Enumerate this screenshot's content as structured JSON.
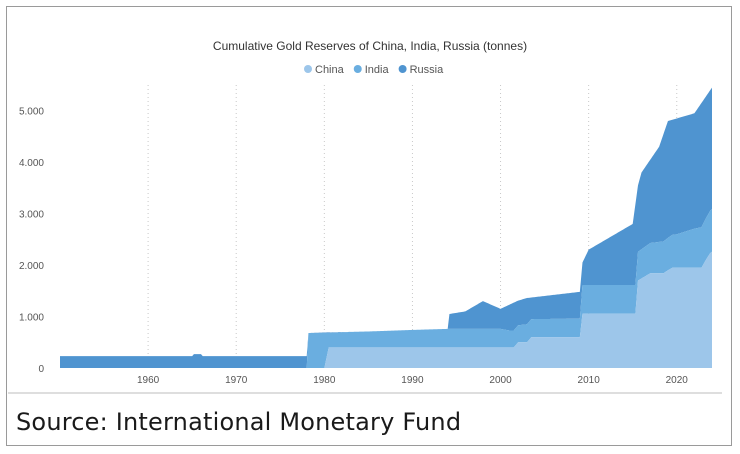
{
  "chart_data": {
    "type": "area",
    "stacked": true,
    "title": "Cumulative Gold Reserves of China, India, Russia (tonnes)",
    "legend_position": "top-center",
    "xlabel": "",
    "ylabel": "",
    "xlim": [
      1950,
      2024
    ],
    "ylim": [
      0,
      5500
    ],
    "x_ticks": [
      "1960",
      "1970",
      "1980",
      "1990",
      "2000",
      "2010",
      "2020"
    ],
    "y_ticks": [
      "0",
      "1.000",
      "2.000",
      "3.000",
      "4.000",
      "5.000"
    ],
    "grid": "vertical-dotted",
    "series": [
      {
        "name": "China",
        "color": "#9dc6ea",
        "points": [
          [
            1980,
            0
          ],
          [
            1980.5,
            400
          ],
          [
            2001.5,
            400
          ],
          [
            2002,
            500
          ],
          [
            2003,
            500
          ],
          [
            2003.5,
            600
          ],
          [
            2009,
            600
          ],
          [
            2009.3,
            1054
          ],
          [
            2015.3,
            1054
          ],
          [
            2015.6,
            1700
          ],
          [
            2017,
            1842
          ],
          [
            2018.5,
            1842
          ],
          [
            2019,
            1900
          ],
          [
            2019.5,
            1948
          ],
          [
            2022.8,
            1948
          ],
          [
            2023.3,
            2100
          ],
          [
            2023.8,
            2235
          ],
          [
            2024,
            2260
          ]
        ]
      },
      {
        "name": "India",
        "color": "#6aaee0",
        "points": [
          [
            1950,
            0
          ],
          [
            1950.5,
            0
          ],
          [
            1965.3,
            0
          ],
          [
            1978,
            0
          ],
          [
            1978.2,
            680
          ],
          [
            1980,
            680
          ],
          [
            1980.5,
            280
          ],
          [
            1990,
            360
          ],
          [
            2000,
            360
          ],
          [
            2001,
            330
          ],
          [
            2002,
            330
          ],
          [
            2003,
            350
          ],
          [
            2009,
            358
          ],
          [
            2009.3,
            558
          ],
          [
            2015.3,
            558
          ],
          [
            2015.6,
            558
          ],
          [
            2020,
            650
          ],
          [
            2022,
            760
          ],
          [
            2024,
            830
          ]
        ]
      },
      {
        "name": "Russia",
        "color": "#4f94d0",
        "points": [
          [
            1950,
            0
          ],
          [
            1993.5,
            0
          ],
          [
            1994,
            300
          ],
          [
            1995,
            300
          ],
          [
            1996,
            350
          ],
          [
            1998,
            550
          ],
          [
            1999,
            380
          ],
          [
            2000,
            380
          ],
          [
            2001,
            420
          ],
          [
            2002,
            470
          ],
          [
            2003,
            390
          ],
          [
            2005,
            386
          ],
          [
            2007,
            450
          ],
          [
            2009,
            500
          ],
          [
            2009.3,
            400
          ],
          [
            2010,
            600
          ],
          [
            2012,
            800
          ],
          [
            2014,
            1000
          ],
          [
            2015,
            1100
          ],
          [
            2015.6,
            1750
          ],
          [
            2016,
            1900
          ],
          [
            2018,
            2000
          ],
          [
            2019,
            2200
          ],
          [
            2019.5,
            2270
          ],
          [
            2020,
            2280
          ],
          [
            2022,
            2300
          ],
          [
            2024,
            2360
          ]
        ]
      }
    ],
    "total_profile": [
      [
        1950,
        230
      ],
      [
        1965,
        230
      ],
      [
        1965.2,
        270
      ],
      [
        1966,
        270
      ],
      [
        1966.2,
        230
      ],
      [
        1978,
        230
      ],
      [
        1978.2,
        680
      ],
      [
        1980,
        690
      ],
      [
        1985,
        710
      ],
      [
        1990,
        740
      ],
      [
        1994,
        760
      ],
      [
        1994.2,
        1050
      ],
      [
        1996,
        1100
      ],
      [
        1998,
        1300
      ],
      [
        2000,
        1150
      ],
      [
        2002,
        1310
      ],
      [
        2003,
        1360
      ],
      [
        2009,
        1480
      ],
      [
        2009.3,
        2050
      ],
      [
        2010,
        2300
      ],
      [
        2015,
        2800
      ],
      [
        2015.6,
        3550
      ],
      [
        2016,
        3800
      ],
      [
        2018,
        4300
      ],
      [
        2019,
        4800
      ],
      [
        2022,
        4950
      ],
      [
        2024,
        5450
      ]
    ]
  },
  "source_text": "Source: International Monetary Fund"
}
